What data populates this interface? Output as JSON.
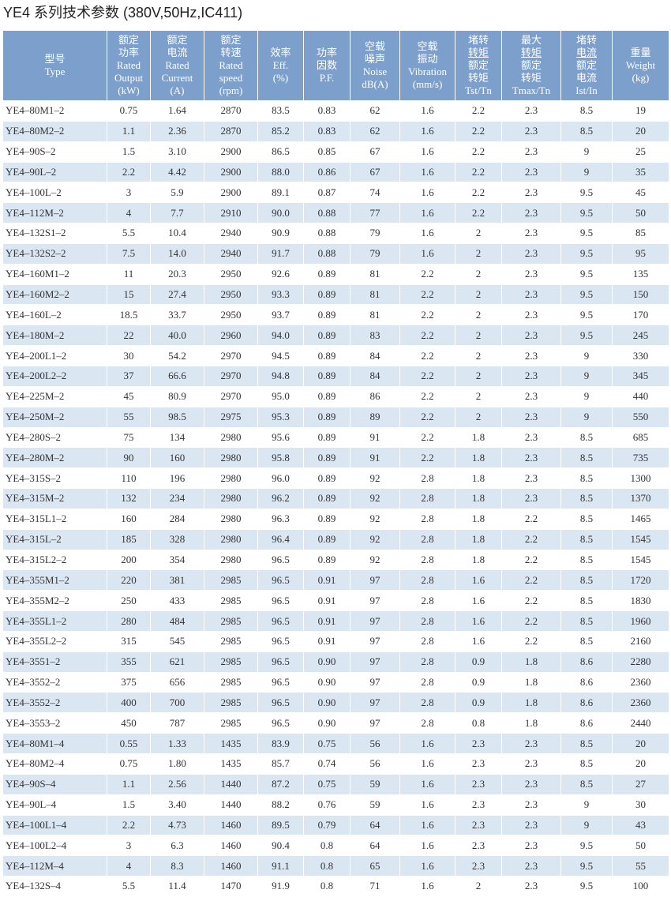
{
  "title": "YE4 系列技术参数 (380V,50Hz,IC411)",
  "table": {
    "header": [
      [
        "型号",
        "Type"
      ],
      [
        "额定",
        "功率",
        "Rated",
        "Output",
        "(kW)"
      ],
      [
        "额定",
        "电流",
        "Rated",
        "Current",
        "(A)"
      ],
      [
        "额定",
        "转速",
        "Rated",
        "speed",
        "(rpm)"
      ],
      [
        "效率",
        "Eff.",
        "(%)"
      ],
      [
        "功率",
        "因数",
        "P.F."
      ],
      [
        "空载",
        "噪声",
        "Noise",
        "dB(A)"
      ],
      [
        "空载",
        "振动",
        "Vibration",
        "(mm/s)"
      ],
      [
        "堵转",
        "转矩",
        "额定",
        "转矩",
        "Tst/Tn"
      ],
      [
        "最大",
        "转矩",
        "额定",
        "转矩",
        "Tmax/Tn"
      ],
      [
        "堵转",
        "电流",
        "额定",
        "电流",
        "Ist/In"
      ],
      [
        "重量",
        "Weight",
        "(kg)"
      ]
    ],
    "rows": [
      [
        "YE4–80M1–2",
        "0.75",
        "1.64",
        "2870",
        "83.5",
        "0.83",
        "62",
        "1.6",
        "2.2",
        "2.3",
        "8.5",
        "19"
      ],
      [
        "YE4–80M2–2",
        "1.1",
        "2.36",
        "2870",
        "85.2",
        "0.83",
        "62",
        "1.6",
        "2.2",
        "2.3",
        "8.5",
        "20"
      ],
      [
        "YE4–90S–2",
        "1.5",
        "3.10",
        "2900",
        "86.5",
        "0.85",
        "67",
        "1.6",
        "2.2",
        "2.3",
        "9",
        "25"
      ],
      [
        "YE4–90L–2",
        "2.2",
        "4.42",
        "2900",
        "88.0",
        "0.86",
        "67",
        "1.6",
        "2.2",
        "2.3",
        "9",
        "35"
      ],
      [
        "YE4–100L–2",
        "3",
        "5.9",
        "2900",
        "89.1",
        "0.87",
        "74",
        "1.6",
        "2.2",
        "2.3",
        "9.5",
        "45"
      ],
      [
        "YE4–112M–2",
        "4",
        "7.7",
        "2910",
        "90.0",
        "0.88",
        "77",
        "1.6",
        "2.2",
        "2.3",
        "9.5",
        "50"
      ],
      [
        "YE4–132S1–2",
        "5.5",
        "10.4",
        "2940",
        "90.9",
        "0.88",
        "79",
        "1.6",
        "2",
        "2.3",
        "9.5",
        "85"
      ],
      [
        "YE4–132S2–2",
        "7.5",
        "14.0",
        "2940",
        "91.7",
        "0.88",
        "79",
        "1.6",
        "2",
        "2.3",
        "9.5",
        "95"
      ],
      [
        "YE4–160M1–2",
        "11",
        "20.3",
        "2950",
        "92.6",
        "0.89",
        "81",
        "2.2",
        "2",
        "2.3",
        "9.5",
        "135"
      ],
      [
        "YE4–160M2–2",
        "15",
        "27.4",
        "2950",
        "93.3",
        "0.89",
        "81",
        "2.2",
        "2",
        "2.3",
        "9.5",
        "150"
      ],
      [
        "YE4–160L–2",
        "18.5",
        "33.7",
        "2950",
        "93.7",
        "0.89",
        "81",
        "2.2",
        "2",
        "2.3",
        "9.5",
        "170"
      ],
      [
        "YE4–180M–2",
        "22",
        "40.0",
        "2960",
        "94.0",
        "0.89",
        "83",
        "2.2",
        "2",
        "2.3",
        "9.5",
        "245"
      ],
      [
        "YE4–200L1–2",
        "30",
        "54.2",
        "2970",
        "94.5",
        "0.89",
        "84",
        "2.2",
        "2",
        "2.3",
        "9",
        "330"
      ],
      [
        "YE4–200L2–2",
        "37",
        "66.6",
        "2970",
        "94.8",
        "0.89",
        "84",
        "2.2",
        "2",
        "2.3",
        "9",
        "345"
      ],
      [
        "YE4–225M–2",
        "45",
        "80.9",
        "2970",
        "95.0",
        "0.89",
        "86",
        "2.2",
        "2",
        "2.3",
        "9",
        "440"
      ],
      [
        "YE4–250M–2",
        "55",
        "98.5",
        "2975",
        "95.3",
        "0.89",
        "89",
        "2.2",
        "2",
        "2.3",
        "9",
        "550"
      ],
      [
        "YE4–280S–2",
        "75",
        "134",
        "2980",
        "95.6",
        "0.89",
        "91",
        "2.2",
        "1.8",
        "2.3",
        "8.5",
        "685"
      ],
      [
        "YE4–280M–2",
        "90",
        "160",
        "2980",
        "95.8",
        "0.89",
        "91",
        "2.2",
        "1.8",
        "2.3",
        "8.5",
        "735"
      ],
      [
        "YE4–315S–2",
        "110",
        "196",
        "2980",
        "96.0",
        "0.89",
        "92",
        "2.8",
        "1.8",
        "2.3",
        "8.5",
        "1300"
      ],
      [
        "YE4–315M–2",
        "132",
        "234",
        "2980",
        "96.2",
        "0.89",
        "92",
        "2.8",
        "1.8",
        "2.3",
        "8.5",
        "1370"
      ],
      [
        "YE4–315L1–2",
        "160",
        "284",
        "2980",
        "96.3",
        "0.89",
        "92",
        "2.8",
        "1.8",
        "2.2",
        "8.5",
        "1465"
      ],
      [
        "YE4–315L–2",
        "185",
        "328",
        "2980",
        "96.4",
        "0.89",
        "92",
        "2.8",
        "1.8",
        "2.2",
        "8.5",
        "1545"
      ],
      [
        "YE4–315L2–2",
        "200",
        "354",
        "2980",
        "96.5",
        "0.89",
        "92",
        "2.8",
        "1.8",
        "2.2",
        "8.5",
        "1545"
      ],
      [
        "YE4–355M1–2",
        "220",
        "381",
        "2985",
        "96.5",
        "0.91",
        "97",
        "2.8",
        "1.6",
        "2.2",
        "8.5",
        "1720"
      ],
      [
        "YE4–355M2–2",
        "250",
        "433",
        "2985",
        "96.5",
        "0.91",
        "97",
        "2.8",
        "1.6",
        "2.2",
        "8.5",
        "1830"
      ],
      [
        "YE4–355L1–2",
        "280",
        "484",
        "2985",
        "96.5",
        "0.91",
        "97",
        "2.8",
        "1.6",
        "2.2",
        "8.5",
        "1960"
      ],
      [
        "YE4–355L2–2",
        "315",
        "545",
        "2985",
        "96.5",
        "0.91",
        "97",
        "2.8",
        "1.6",
        "2.2",
        "8.5",
        "2160"
      ],
      [
        "YE4–3551–2",
        "355",
        "621",
        "2985",
        "96.5",
        "0.90",
        "97",
        "2.8",
        "0.9",
        "1.8",
        "8.6",
        "2280"
      ],
      [
        "YE4–3552–2",
        "375",
        "656",
        "2985",
        "96.5",
        "0.90",
        "97",
        "2.8",
        "0.9",
        "1.8",
        "8.6",
        "2360"
      ],
      [
        "YE4–3552–2",
        "400",
        "700",
        "2985",
        "96.5",
        "0.90",
        "97",
        "2.8",
        "0.9",
        "1.8",
        "8.6",
        "2360"
      ],
      [
        "YE4–3553–2",
        "450",
        "787",
        "2985",
        "96.5",
        "0.90",
        "97",
        "2.8",
        "0.8",
        "1.8",
        "8.6",
        "2440"
      ],
      [
        "YE4–80M1–4",
        "0.55",
        "1.33",
        "1435",
        "83.9",
        "0.75",
        "56",
        "1.6",
        "2.3",
        "2.3",
        "8.5",
        "20"
      ],
      [
        "YE4–80M2–4",
        "0.75",
        "1.80",
        "1435",
        "85.7",
        "0.74",
        "56",
        "1.6",
        "2.3",
        "2.3",
        "8.5",
        "20"
      ],
      [
        "YE4–90S–4",
        "1.1",
        "2.56",
        "1440",
        "87.2",
        "0.75",
        "59",
        "1.6",
        "2.3",
        "2.3",
        "8.5",
        "27"
      ],
      [
        "YE4–90L–4",
        "1.5",
        "3.40",
        "1440",
        "88.2",
        "0.76",
        "59",
        "1.6",
        "2.3",
        "2.3",
        "9",
        "30"
      ],
      [
        "YE4–100L1–4",
        "2.2",
        "4.73",
        "1460",
        "89.5",
        "0.79",
        "64",
        "1.6",
        "2.3",
        "2.3",
        "9",
        "43"
      ],
      [
        "YE4–100L2–4",
        "3",
        "6.3",
        "1460",
        "90.4",
        "0.8",
        "64",
        "1.6",
        "2.3",
        "2.3",
        "9.5",
        "50"
      ],
      [
        "YE4–112M–4",
        "4",
        "8.3",
        "1460",
        "91.1",
        "0.8",
        "65",
        "1.6",
        "2.3",
        "2.3",
        "9.5",
        "55"
      ],
      [
        "YE4–132S–4",
        "5.5",
        "11.4",
        "1470",
        "91.9",
        "0.8",
        "71",
        "1.6",
        "2",
        "2.3",
        "9.5",
        "100"
      ]
    ]
  }
}
